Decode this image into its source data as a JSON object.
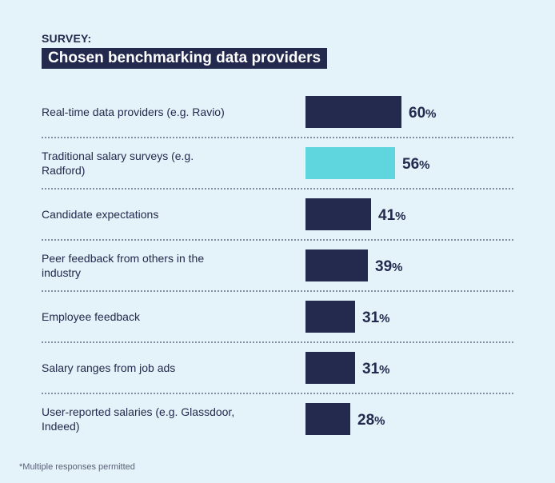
{
  "kicker": "SURVEY:",
  "footnote": "*Multiple responses permitted",
  "chart_data": {
    "type": "bar",
    "orientation": "horizontal",
    "title": "Chosen benchmarking data providers",
    "value_suffix": "%",
    "xlim": [
      0,
      100
    ],
    "categories": [
      [
        "Real-time data providers (e.g. Ravio)"
      ],
      [
        "Traditional salary surveys (e.g.",
        "Radford)"
      ],
      [
        "Candidate expectations"
      ],
      [
        "Peer feedback from others in the",
        "industry"
      ],
      [
        "Employee feedback"
      ],
      [
        "Salary ranges from job ads"
      ],
      [
        "User-reported salaries (e.g. Glassdoor,",
        "Indeed)"
      ]
    ],
    "values": [
      60,
      56,
      41,
      39,
      31,
      31,
      28
    ],
    "colors": [
      "#232a4d",
      "#5fd6de",
      "#232a4d",
      "#232a4d",
      "#232a4d",
      "#232a4d",
      "#232a4d"
    ],
    "grid": false,
    "legend": "none"
  }
}
